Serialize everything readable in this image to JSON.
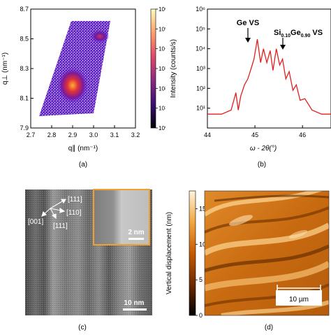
{
  "panels": {
    "a": {
      "label": "(a)",
      "ylabel": "q⊥ (nm⁻¹)",
      "xlabel": "q∥ (nm⁻¹)",
      "xticks": [
        "2.7",
        "2.8",
        "2.9",
        "3.0",
        "3.1",
        "3.2"
      ],
      "yticks": [
        "7.9",
        "8.1",
        "8.3",
        "8.5",
        "8.7"
      ],
      "colorbar_ticks": [
        "10⁰",
        "10¹",
        "10²",
        "10³",
        "10⁴",
        "10⁵",
        "10⁶"
      ]
    },
    "b": {
      "label": "(b)",
      "ylabel": "Intensity (counts/s)",
      "xlabel": "ω - 2θ(°)",
      "xticks": [
        "44",
        "45",
        "46"
      ],
      "yticks": [
        "10¹",
        "10²",
        "10³",
        "10⁴",
        "10⁵",
        "10⁶"
      ],
      "annotations": [
        "Ge VS",
        "Si0.10Ge0.90 VS"
      ]
    },
    "c": {
      "label": "(c)",
      "directions": [
        "[111]",
        "[110]",
        "[001]",
        "[111]"
      ],
      "inset_scale": "2 nm",
      "scale": "10 nm"
    },
    "d": {
      "label": "(d)",
      "ylabel": "Vertical displacement (nm)",
      "colorbar_ticks": [
        "0",
        "5",
        "10",
        "15"
      ],
      "scale": "10 µm"
    }
  },
  "chart_data": [
    {
      "type": "heatmap",
      "xlabel": "q∥ (nm⁻¹)",
      "ylabel": "q⊥ (nm⁻¹)",
      "xlim": [
        2.7,
        3.2
      ],
      "ylim": [
        7.9,
        8.7
      ],
      "colorbar_range": [
        1,
        1000000
      ],
      "colorbar_scale": "log",
      "peaks": [
        {
          "x": 2.87,
          "y": 8.15
        },
        {
          "x": 3.0,
          "y": 8.5
        }
      ]
    },
    {
      "type": "line",
      "xlabel": "ω - 2θ(°)",
      "ylabel": "Intensity (counts/s)",
      "xlim": [
        44,
        46.6
      ],
      "ylim": [
        1,
        1000000
      ],
      "yscale": "log",
      "color": "#e0201b",
      "x": [
        44.0,
        44.3,
        44.5,
        44.6,
        44.65,
        44.7,
        44.78,
        44.85,
        44.92,
        44.98,
        45.05,
        45.12,
        45.18,
        45.25,
        45.32,
        45.38,
        45.45,
        45.52,
        45.58,
        45.65,
        45.72,
        45.8,
        45.87,
        45.95,
        46.05,
        46.2,
        46.4,
        46.6
      ],
      "y": [
        5,
        5,
        8,
        60,
        8,
        40,
        150,
        300,
        1000,
        3000,
        30000,
        2000,
        10000,
        2000,
        8000,
        800,
        10000,
        1500,
        3000,
        300,
        700,
        80,
        150,
        25,
        30,
        8,
        5,
        5
      ]
    }
  ]
}
